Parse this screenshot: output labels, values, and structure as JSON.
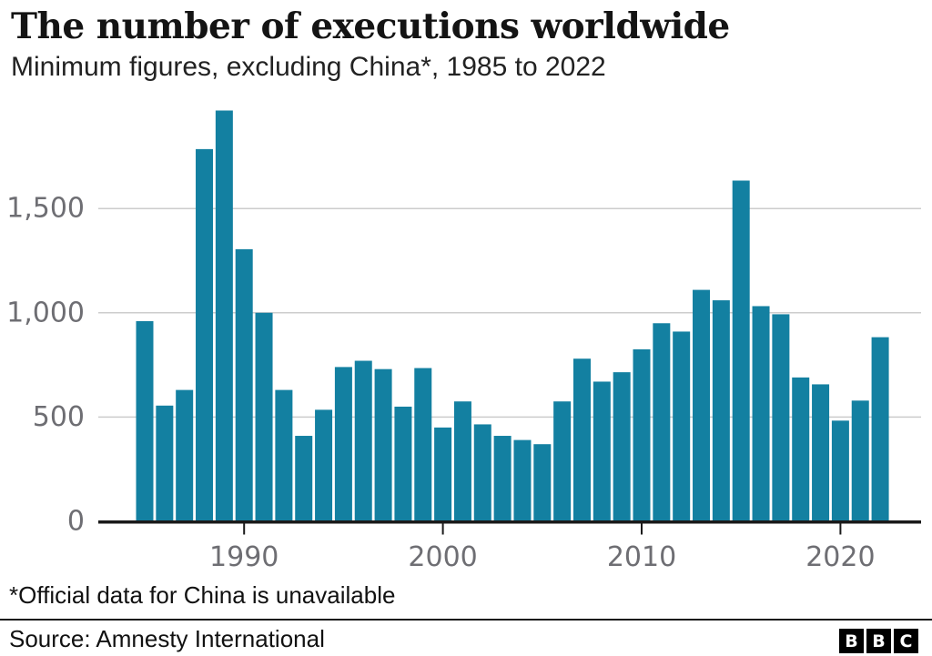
{
  "header": {
    "title": "The number of executions worldwide",
    "subtitle": "Minimum figures, excluding China*, 1985 to 2022"
  },
  "chart_data": {
    "type": "bar",
    "title": "The number of executions worldwide",
    "subtitle": "Minimum figures, excluding China*, 1985 to 2022",
    "xlabel": "",
    "ylabel": "",
    "categories": [
      1985,
      1986,
      1987,
      1988,
      1989,
      1990,
      1991,
      1992,
      1993,
      1994,
      1995,
      1996,
      1997,
      1998,
      1999,
      2000,
      2001,
      2002,
      2003,
      2004,
      2005,
      2006,
      2007,
      2008,
      2009,
      2010,
      2011,
      2012,
      2013,
      2014,
      2015,
      2016,
      2017,
      2018,
      2019,
      2020,
      2021,
      2022
    ],
    "values": [
      960,
      555,
      630,
      1785,
      1970,
      1305,
      1000,
      630,
      410,
      535,
      740,
      770,
      730,
      550,
      735,
      450,
      575,
      465,
      410,
      390,
      370,
      575,
      780,
      670,
      715,
      825,
      950,
      910,
      1110,
      1060,
      1634,
      1032,
      993,
      690,
      657,
      483,
      579,
      883
    ],
    "ylim": [
      0,
      2000
    ],
    "yticks": [
      0,
      500,
      1000,
      1500
    ],
    "ytick_labels": [
      "0",
      "500",
      "1,000",
      "1,500"
    ],
    "xticks": [
      1990,
      2000,
      2010,
      2020
    ],
    "grid": "horizontal",
    "legend_position": "none",
    "bar_color": "#1380A1"
  },
  "footer": {
    "footnote": "*Official data for China is unavailable",
    "source": "Source: Amnesty International",
    "logo_letters": [
      "B",
      "B",
      "C"
    ]
  },
  "colors": {
    "bar": "#1380A1",
    "axis": "#1a1a1a",
    "gridline": "#cccccc",
    "tick_label": "#6e6e73",
    "title_text": "#141414"
  }
}
